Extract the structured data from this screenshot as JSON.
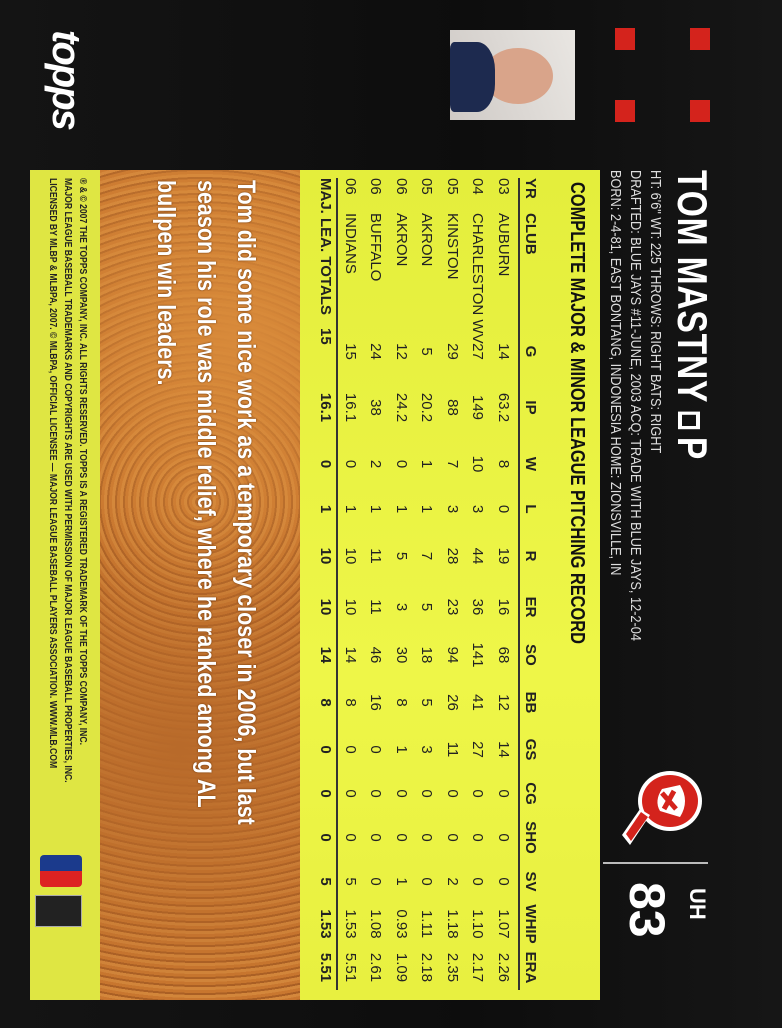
{
  "brand": "topps",
  "player": {
    "name": "TOM MASTNY",
    "position": "P",
    "info_lines": [
      "HT: 6'6\"   WT: 225   THROWS: RIGHT   BATS: RIGHT",
      "DRAFTED: BLUE JAYS #11-JUNE, 2003   ACQ: TRADE WITH BLUE JAYS, 12-2-04",
      "BORN: 2-4-81, EAST BONTANG, INDONESIA   HOME: ZIONSVILLE, IN"
    ]
  },
  "card_number": {
    "prefix": "UH",
    "number": "83"
  },
  "stats": {
    "title": "COMPLETE MAJOR & MINOR LEAGUE PITCHING RECORD",
    "columns": [
      "YR",
      "CLUB",
      "G",
      "IP",
      "W",
      "L",
      "R",
      "ER",
      "SO",
      "BB",
      "GS",
      "CG",
      "SHO",
      "SV",
      "WHIP",
      "ERA"
    ],
    "rows": [
      [
        "03",
        "AUBURN",
        "14",
        "63.2",
        "8",
        "0",
        "19",
        "16",
        "68",
        "12",
        "14",
        "0",
        "0",
        "0",
        "1.07",
        "2.26"
      ],
      [
        "04",
        "CHARLESTON WV",
        "27",
        "149",
        "10",
        "3",
        "44",
        "36",
        "141",
        "41",
        "27",
        "0",
        "0",
        "0",
        "1.10",
        "2.17"
      ],
      [
        "05",
        "KINSTON",
        "29",
        "88",
        "7",
        "3",
        "28",
        "23",
        "94",
        "26",
        "11",
        "0",
        "0",
        "2",
        "1.18",
        "2.35"
      ],
      [
        "05",
        "AKRON",
        "5",
        "20.2",
        "1",
        "1",
        "7",
        "5",
        "18",
        "5",
        "3",
        "0",
        "0",
        "0",
        "1.11",
        "2.18"
      ],
      [
        "06",
        "AKRON",
        "12",
        "24.2",
        "0",
        "1",
        "5",
        "3",
        "30",
        "8",
        "1",
        "0",
        "0",
        "1",
        "0.93",
        "1.09"
      ],
      [
        "06",
        "BUFFALO",
        "24",
        "38",
        "2",
        "1",
        "11",
        "11",
        "46",
        "16",
        "0",
        "0",
        "0",
        "0",
        "1.08",
        "2.61"
      ],
      [
        "06",
        "INDIANS",
        "15",
        "16.1",
        "0",
        "1",
        "10",
        "10",
        "14",
        "8",
        "0",
        "0",
        "0",
        "5",
        "1.53",
        "5.51"
      ]
    ],
    "totals": [
      "MAJ. LEA. TOTALS",
      "",
      "15",
      "16.1",
      "0",
      "1",
      "10",
      "10",
      "14",
      "8",
      "0",
      "0",
      "0",
      "5",
      "1.53",
      "5.51"
    ]
  },
  "bio": [
    "Tom did some nice work as a temporary closer in 2006, but last",
    "season his role was middle relief, where he ranked among AL",
    "bullpen win leaders."
  ],
  "legal": [
    "® & © 2007 THE TOPPS COMPANY, INC. ALL RIGHTS RESERVED. TOPPS IS A REGISTERED TRADEMARK OF THE TOPPS COMPANY, INC.",
    "MAJOR LEAGUE BASEBALL TRADEMARKS AND COPYRIGHTS ARE USED WITH PERMISSION OF MAJOR LEAGUE BASEBALL PROPERTIES, INC.",
    "LICENSED BY MLBP & MLBPA, 2007. © MLBPA, OFFICIAL LICENSEE — MAJOR LEAGUE BASEBALL PLAYERS ASSOCIATION. WWW.MLB.COM"
  ],
  "colors": {
    "background": "#111111",
    "accent_red": "#d4231c",
    "stats_yellow": "#e8f040",
    "bio_orange": "#c9772f"
  },
  "icons": [
    "topps-logo",
    "indians-logo",
    "mlb-logo",
    "mlbpa-logo"
  ]
}
